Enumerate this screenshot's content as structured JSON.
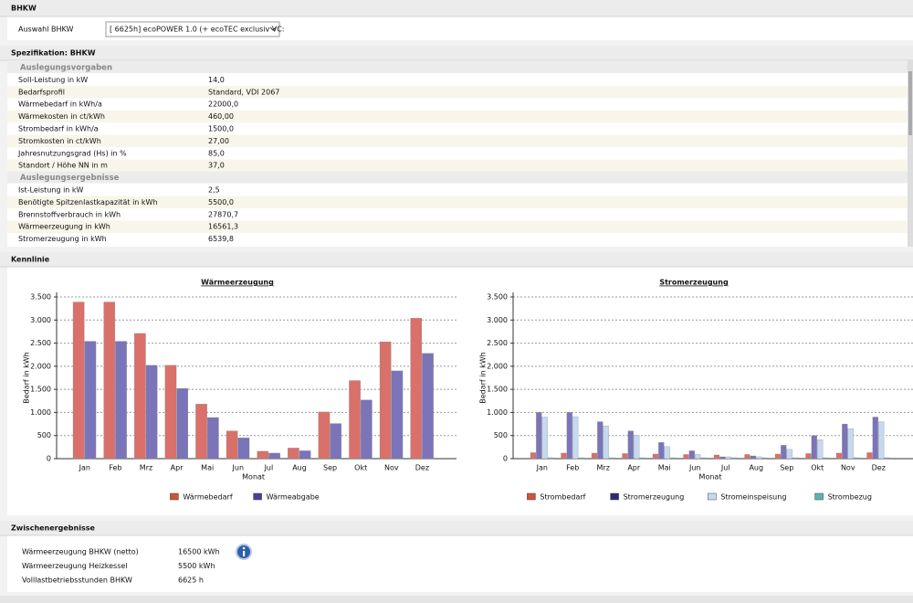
{
  "header": {
    "title": "BHKW",
    "select_label": "Auswahl BHKW",
    "select_value": "[ 6625h] ecoPOWER 1.0 (+ ecoTEC exclusiv VC:"
  },
  "spec": {
    "title": "Spezifikation: BHKW",
    "groups": [
      {
        "title": "Auslegungsvorgaben",
        "rows": [
          [
            "Soll-Leistung in kW",
            "14,0"
          ],
          [
            "Bedarfsprofil",
            "Standard, VDI 2067"
          ],
          [
            "Wärmebedarf in kWh/a",
            "22000,0"
          ],
          [
            "Wärmekosten in ct/kWh",
            "460,00"
          ],
          [
            "Strombedarf in kWh/a",
            "1500,0"
          ],
          [
            "Stromkosten in ct/kWh",
            "27,00"
          ],
          [
            "Jahresnutzungsgrad (Hs) in %",
            "85,0"
          ],
          [
            "Standort / Höhe NN in m",
            "37,0"
          ]
        ]
      },
      {
        "title": "Auslegungsergebnisse",
        "rows": [
          [
            "Ist-Leistung in kW",
            "2,5"
          ],
          [
            "Benötigte Spitzenlastkapazität in kWh",
            "5500,0"
          ],
          [
            "Brennstoffverbrauch in kWh",
            "27870,7"
          ],
          [
            "Wärmeerzeugung in kWh",
            "16561,3"
          ],
          [
            "Stromerzeugung in kWh",
            "6539,8"
          ]
        ]
      }
    ]
  },
  "kennlinie_title": "Kennlinie",
  "chart_data": [
    {
      "type": "bar",
      "title": "Wärmeerzeugung",
      "y_label": "Bedarf in kWh",
      "x_label": "Monat",
      "grid": true,
      "categories": [
        "Jan",
        "Feb",
        "Mrz",
        "Apr",
        "Mai",
        "Jun",
        "Jul",
        "Aug",
        "Sep",
        "Okt",
        "Nov",
        "Dez"
      ],
      "series": [
        {
          "name": "Wärmebedarf",
          "color": "#d9706a",
          "legend_color": "#c9553a",
          "values": [
            3390,
            3390,
            2710,
            2020,
            1180,
            600,
            160,
            230,
            1010,
            1690,
            2530,
            3040
          ]
        },
        {
          "name": "Wärmeabgabe",
          "color": "#7b74b8",
          "legend_color": "#4b3f9a",
          "values": [
            2540,
            2540,
            2020,
            1520,
            890,
            450,
            120,
            170,
            760,
            1270,
            1900,
            2280
          ]
        }
      ],
      "ylim": [
        0,
        3500
      ],
      "yticks": [
        0,
        {
          "value": 500,
          "label": "500"
        },
        {
          "value": 1000,
          "label": "1.000"
        },
        {
          "value": 1500,
          "label": "1.500"
        },
        {
          "value": 2000,
          "label": "2.000"
        },
        {
          "value": 2500,
          "label": "2.500"
        },
        {
          "value": 3000,
          "label": "3.000"
        },
        {
          "value": 3500,
          "label": "3.500"
        }
      ]
    },
    {
      "type": "bar",
      "title": "Stromerzeugung",
      "y_label": "Bedarf in kWh",
      "x_label": "Monat",
      "grid": true,
      "categories": [
        "Jan",
        "Feb",
        "Mrz",
        "Apr",
        "Mai",
        "Jun",
        "Jul",
        "Aug",
        "Sep",
        "Okt",
        "Nov",
        "Dez"
      ],
      "series": [
        {
          "name": "Strombedarf",
          "color": "#d9706a",
          "legend_color": "#c9553a",
          "values": [
            130,
            120,
            120,
            110,
            100,
            90,
            80,
            90,
            100,
            110,
            120,
            130
          ]
        },
        {
          "name": "Stromerzeugung",
          "color": "#7b74b8",
          "legend_color": "#2e2a7a",
          "values": [
            1000,
            1000,
            800,
            600,
            350,
            170,
            40,
            60,
            290,
            500,
            750,
            900
          ]
        },
        {
          "name": "Stromeinspeisung",
          "color": "#c5d9ef",
          "legend_color": "#c5d9ef",
          "values": [
            900,
            910,
            710,
            510,
            260,
            90,
            40,
            40,
            200,
            410,
            650,
            800
          ]
        },
        {
          "name": "Strombezug",
          "color": "#5fb3ad",
          "legend_color": "#5fb3ad",
          "values": [
            20,
            20,
            20,
            20,
            20,
            20,
            20,
            20,
            20,
            20,
            20,
            20
          ]
        }
      ],
      "ylim": [
        0,
        3500
      ],
      "yticks": [
        0,
        {
          "value": 500,
          "label": "500"
        },
        {
          "value": 1000,
          "label": "1.000"
        },
        {
          "value": 1500,
          "label": "1.500"
        },
        {
          "value": 2000,
          "label": "2.000"
        },
        {
          "value": 2500,
          "label": "2.500"
        },
        {
          "value": 3000,
          "label": "3.000"
        },
        {
          "value": 3500,
          "label": "3.500"
        }
      ]
    }
  ],
  "zwischen": {
    "title": "Zwischenergebnisse",
    "rows": [
      [
        "Wärmeerzeugung BHKW (netto)",
        "16500 kWh"
      ],
      [
        "Wärmeerzeugung Heizkessel",
        "5500 kWh"
      ],
      [
        "Volllastbetriebsstunden BHKW",
        "6625 h"
      ]
    ]
  }
}
